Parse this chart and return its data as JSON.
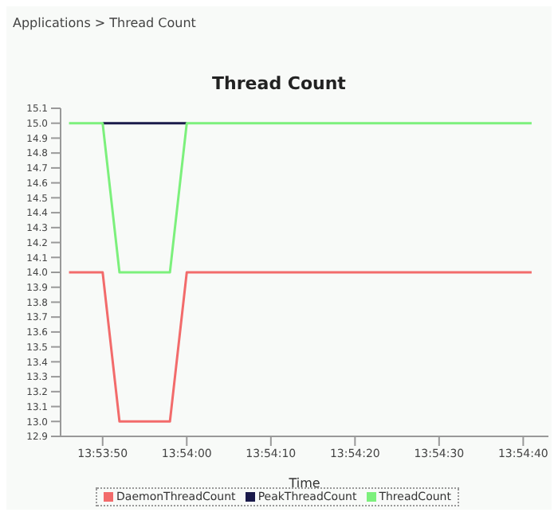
{
  "chart_data": {
    "type": "line",
    "title": "Thread Count",
    "xlabel": "Time",
    "annotations": [
      "Applications > Thread Count"
    ],
    "x": [
      13.896111,
      13.897222,
      13.897778,
      13.899444,
      13.9,
      13.911389
    ],
    "series": [
      {
        "name": "DaemonThreadCount",
        "color": "#f26b6b",
        "values": [
          14,
          14,
          13,
          13,
          14,
          14
        ]
      },
      {
        "name": "PeakThreadCount",
        "color": "#1a1a4a",
        "values": [
          null,
          15,
          15,
          15,
          15,
          null
        ]
      },
      {
        "name": "ThreadCount",
        "color": "#7cf07c",
        "values": [
          15,
          15,
          14,
          14,
          15,
          15
        ]
      }
    ],
    "xlim": [
      13.895833,
      13.911944
    ],
    "xticks": [
      {
        "value": 13.897222,
        "label": "13:53:50"
      },
      {
        "value": 13.9,
        "label": "13:54:00"
      },
      {
        "value": 13.902778,
        "label": "13:54:10"
      },
      {
        "value": 13.905556,
        "label": "13:54:20"
      },
      {
        "value": 13.908333,
        "label": "13:54:30"
      },
      {
        "value": 13.911111,
        "label": "13:54:40"
      }
    ],
    "ylim": [
      12.9,
      15.1
    ],
    "yticks": [
      12.9,
      {
        "value": 13,
        "label": "13.0"
      },
      13.1,
      13.2,
      13.3,
      13.4,
      13.5,
      13.6,
      13.7,
      13.8,
      13.9,
      {
        "value": 14,
        "label": "14.0"
      },
      14.1,
      14.2,
      14.3,
      14.4,
      14.5,
      14.6,
      14.7,
      14.8,
      14.9,
      {
        "value": 15,
        "label": "15.0"
      },
      15.1
    ],
    "legend": "bottom",
    "marker": "none",
    "grid": false
  }
}
